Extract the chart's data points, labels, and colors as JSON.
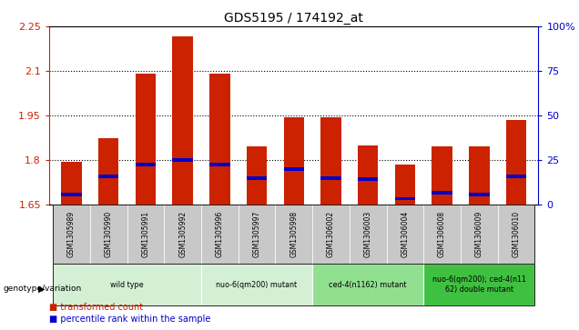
{
  "title": "GDS5195 / 174192_at",
  "samples": [
    "GSM1305989",
    "GSM1305990",
    "GSM1305991",
    "GSM1305992",
    "GSM1305996",
    "GSM1305997",
    "GSM1305998",
    "GSM1306002",
    "GSM1306003",
    "GSM1306004",
    "GSM1306008",
    "GSM1306009",
    "GSM1306010"
  ],
  "bar_values": [
    1.795,
    1.875,
    2.09,
    2.215,
    2.09,
    1.845,
    1.945,
    1.945,
    1.85,
    1.785,
    1.845,
    1.845,
    1.935
  ],
  "blue_values": [
    1.685,
    1.745,
    1.785,
    1.8,
    1.785,
    1.74,
    1.77,
    1.74,
    1.735,
    1.67,
    1.69,
    1.685,
    1.745
  ],
  "y_min": 1.65,
  "y_max": 2.25,
  "y_ticks": [
    1.65,
    1.8,
    1.95,
    2.1,
    2.25
  ],
  "right_y_ticks": [
    0,
    25,
    50,
    75,
    100
  ],
  "right_y_labels": [
    "0",
    "25",
    "50",
    "75",
    "100%"
  ],
  "genotype_groups": [
    {
      "label": "wild type",
      "start": 0,
      "end": 3,
      "color": "#d4f0d4"
    },
    {
      "label": "nuo-6(qm200) mutant",
      "start": 4,
      "end": 6,
      "color": "#d4f0d4"
    },
    {
      "label": "ced-4(n1162) mutant",
      "start": 7,
      "end": 9,
      "color": "#90e090"
    },
    {
      "label": "nuo-6(qm200); ced-4(n11\n62) double mutant",
      "start": 10,
      "end": 12,
      "color": "#40c040"
    }
  ],
  "bar_color": "#cc2200",
  "blue_color": "#0000cc",
  "bar_width": 0.55,
  "background_color": "#ffffff",
  "sample_bg_color": "#c8c8c8",
  "legend_items": [
    {
      "label": "transformed count",
      "color": "#cc2200"
    },
    {
      "label": "percentile rank within the sample",
      "color": "#0000cc"
    }
  ],
  "genotype_label": "genotype/variation"
}
